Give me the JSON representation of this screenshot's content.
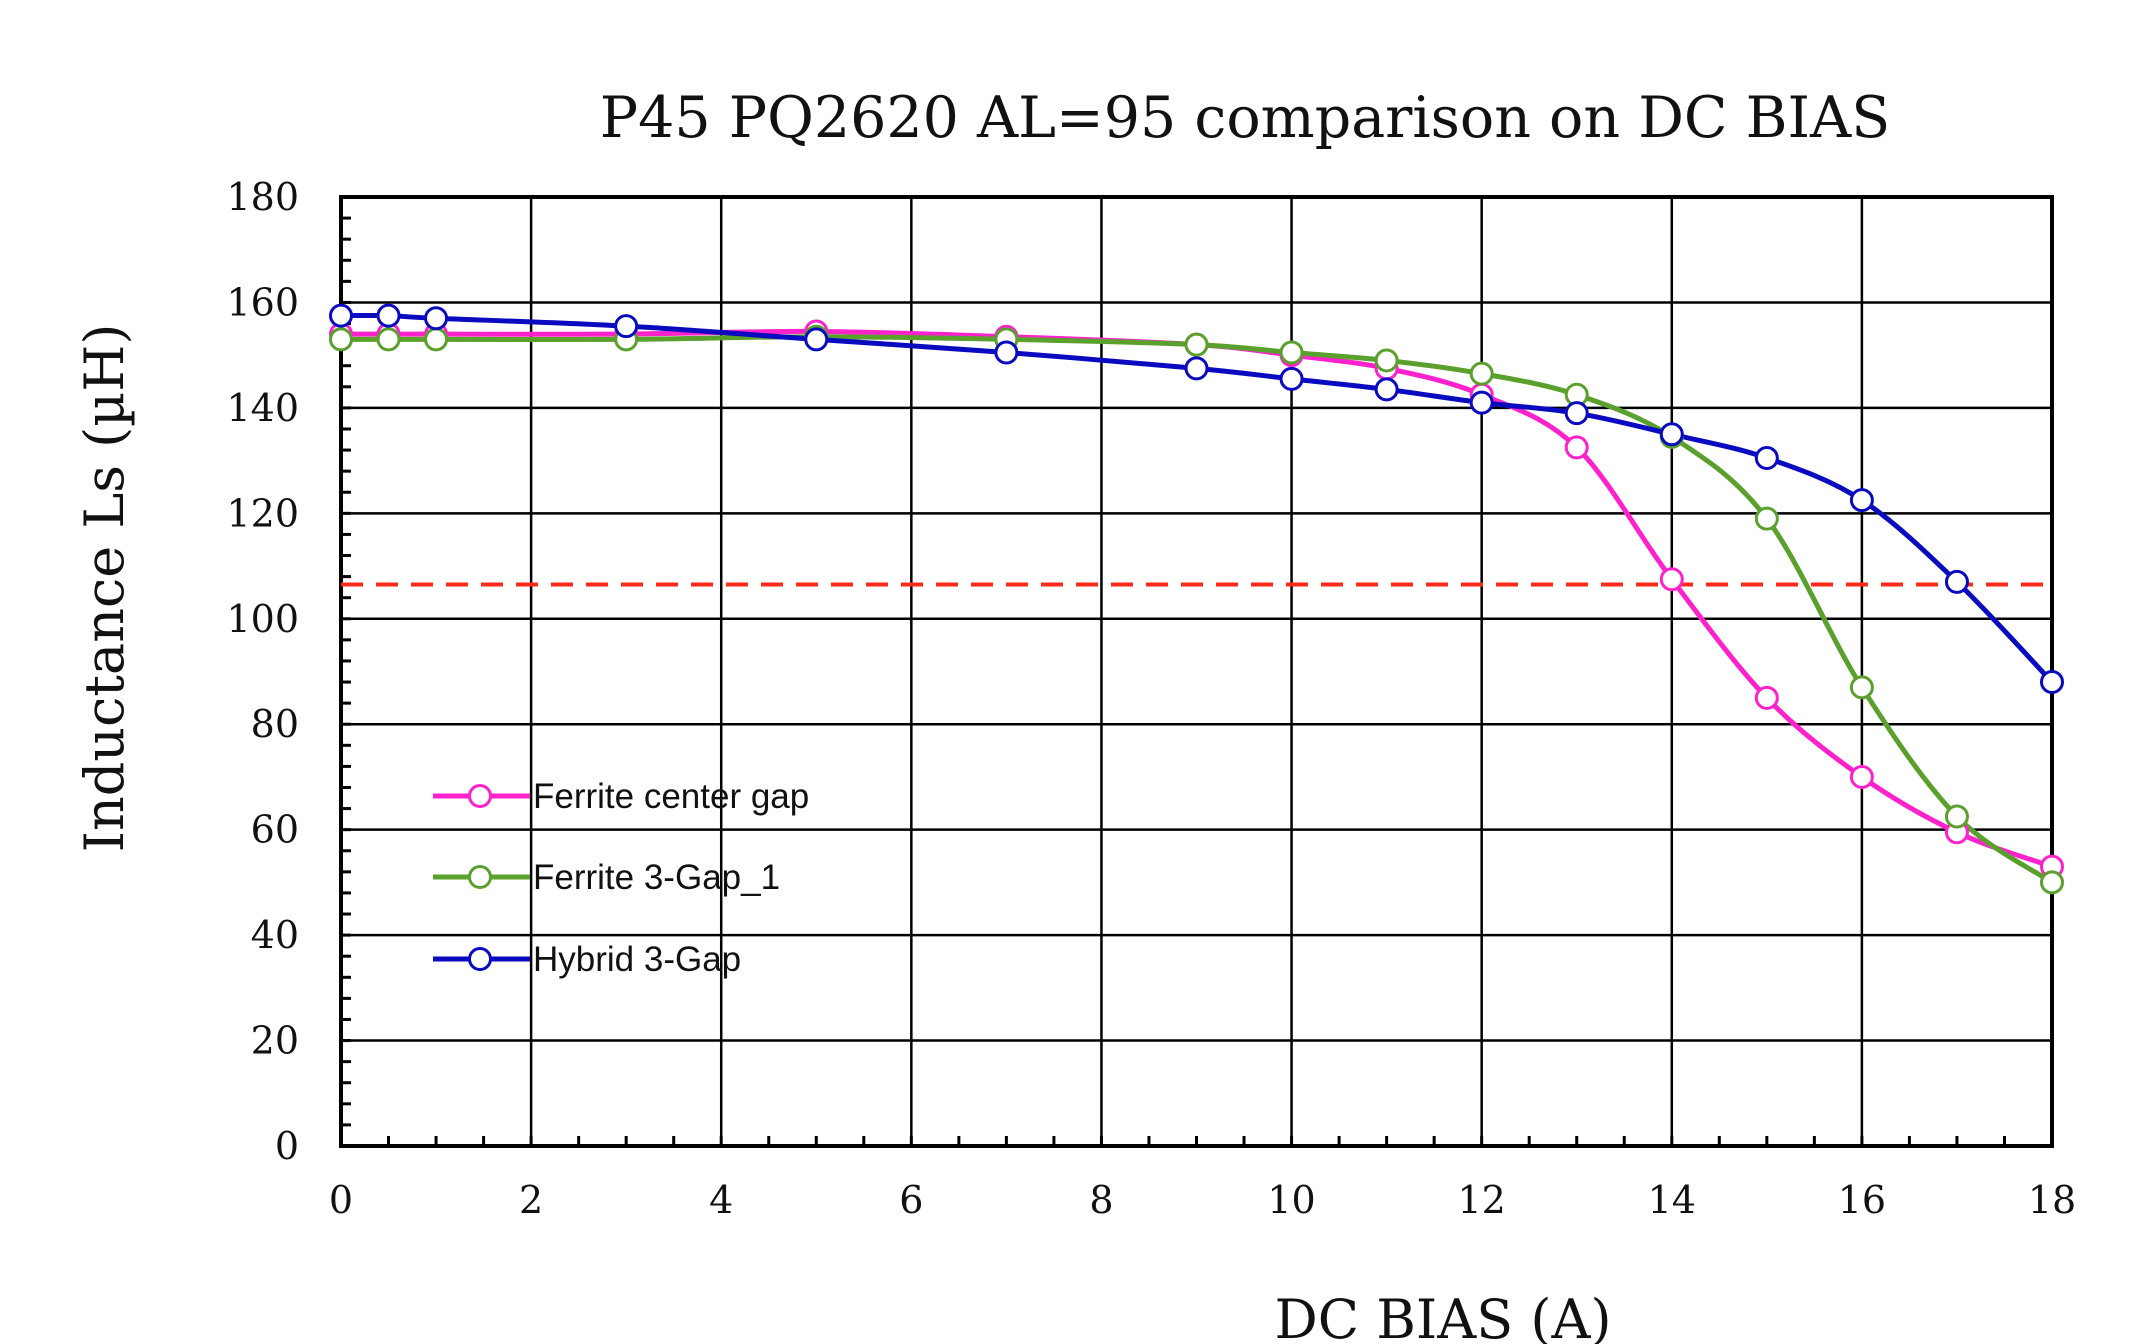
{
  "chart_data": {
    "type": "line",
    "title": "P45 PQ2620 AL=95 comparison on DC BIAS",
    "xlabel": "DC BIAS (A)",
    "ylabel": "Inductance Ls (µH)",
    "xlim": [
      0,
      18
    ],
    "ylim": [
      0,
      180
    ],
    "xticks": [
      0,
      2,
      4,
      6,
      8,
      10,
      12,
      14,
      16,
      18
    ],
    "yticks": [
      0,
      20,
      40,
      60,
      80,
      100,
      120,
      140,
      160,
      180
    ],
    "grid": true,
    "legend_position": "left-center",
    "reference_line": {
      "y": 106.5,
      "color": "#ff2a1a",
      "style": "dashed"
    },
    "series": [
      {
        "name": "Ferrite center gap",
        "color": "#ff22cc",
        "x": [
          0,
          0.5,
          1,
          3,
          5,
          7,
          9,
          10,
          11,
          12,
          13,
          14,
          15,
          16,
          17,
          18
        ],
        "y": [
          154.0,
          154.0,
          154.0,
          154.0,
          154.5,
          153.5,
          152.0,
          150.0,
          147.5,
          142.5,
          132.5,
          107.5,
          85.0,
          70.0,
          59.5,
          53.0
        ]
      },
      {
        "name": "Ferrite 3-Gap_1",
        "color": "#5aa02c",
        "x": [
          0,
          0.5,
          1,
          3,
          5,
          7,
          9,
          10,
          11,
          12,
          13,
          14,
          15,
          16,
          17,
          18
        ],
        "y": [
          153.0,
          153.0,
          153.0,
          153.0,
          153.5,
          153.0,
          152.0,
          150.5,
          149.0,
          146.5,
          142.5,
          134.5,
          119.0,
          87.0,
          62.5,
          50.0
        ]
      },
      {
        "name": "Hybrid 3-Gap",
        "color": "#0a0ac0",
        "x": [
          0,
          0.5,
          1,
          3,
          5,
          7,
          9,
          10,
          11,
          12,
          13,
          14,
          15,
          16,
          17,
          18
        ],
        "y": [
          157.5,
          157.5,
          157.0,
          155.5,
          153.0,
          150.5,
          147.5,
          145.5,
          143.5,
          141.0,
          139.0,
          135.0,
          130.5,
          122.5,
          107.0,
          88.0
        ]
      }
    ]
  }
}
